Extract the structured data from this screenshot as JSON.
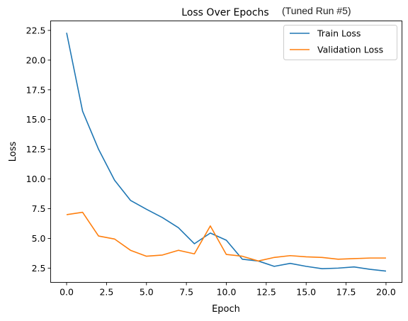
{
  "chart_data": {
    "type": "line",
    "title": "Loss Over Epochs",
    "subtitle": "(Tuned Run #5)",
    "xlabel": "Epoch",
    "ylabel": "Loss",
    "xlim": [
      -1.0,
      21.0
    ],
    "ylim": [
      1.3,
      23.3
    ],
    "xticks": [
      0.0,
      2.5,
      5.0,
      7.5,
      10.0,
      12.5,
      15.0,
      17.5,
      20.0
    ],
    "xtick_labels": [
      "0.0",
      "2.5",
      "5.0",
      "7.5",
      "10.0",
      "12.5",
      "15.0",
      "17.5",
      "20.0"
    ],
    "yticks": [
      2.5,
      5.0,
      7.5,
      10.0,
      12.5,
      15.0,
      17.5,
      20.0,
      22.5
    ],
    "ytick_labels": [
      "2.5",
      "5.0",
      "7.5",
      "10.0",
      "12.5",
      "15.0",
      "17.5",
      "20.0",
      "22.5"
    ],
    "grid": false,
    "legend_position": "top-right",
    "x": [
      0,
      1,
      2,
      3,
      4,
      5,
      6,
      7,
      8,
      9,
      10,
      11,
      12,
      13,
      14,
      15,
      16,
      17,
      18,
      19,
      20
    ],
    "series": [
      {
        "name": "Train Loss",
        "color": "#1f77b4",
        "values": [
          22.3,
          15.7,
          12.5,
          9.9,
          8.2,
          7.45,
          6.75,
          5.9,
          4.55,
          5.45,
          4.85,
          3.25,
          3.1,
          2.65,
          2.9,
          2.65,
          2.45,
          2.5,
          2.6,
          2.4,
          2.25
        ]
      },
      {
        "name": "Validation Loss",
        "color": "#ff7f0e",
        "values": [
          7.0,
          7.2,
          5.2,
          4.95,
          4.0,
          3.5,
          3.6,
          4.0,
          3.7,
          6.05,
          3.65,
          3.5,
          3.1,
          3.4,
          3.55,
          3.45,
          3.4,
          3.25,
          3.3,
          3.35,
          3.35
        ]
      }
    ]
  }
}
